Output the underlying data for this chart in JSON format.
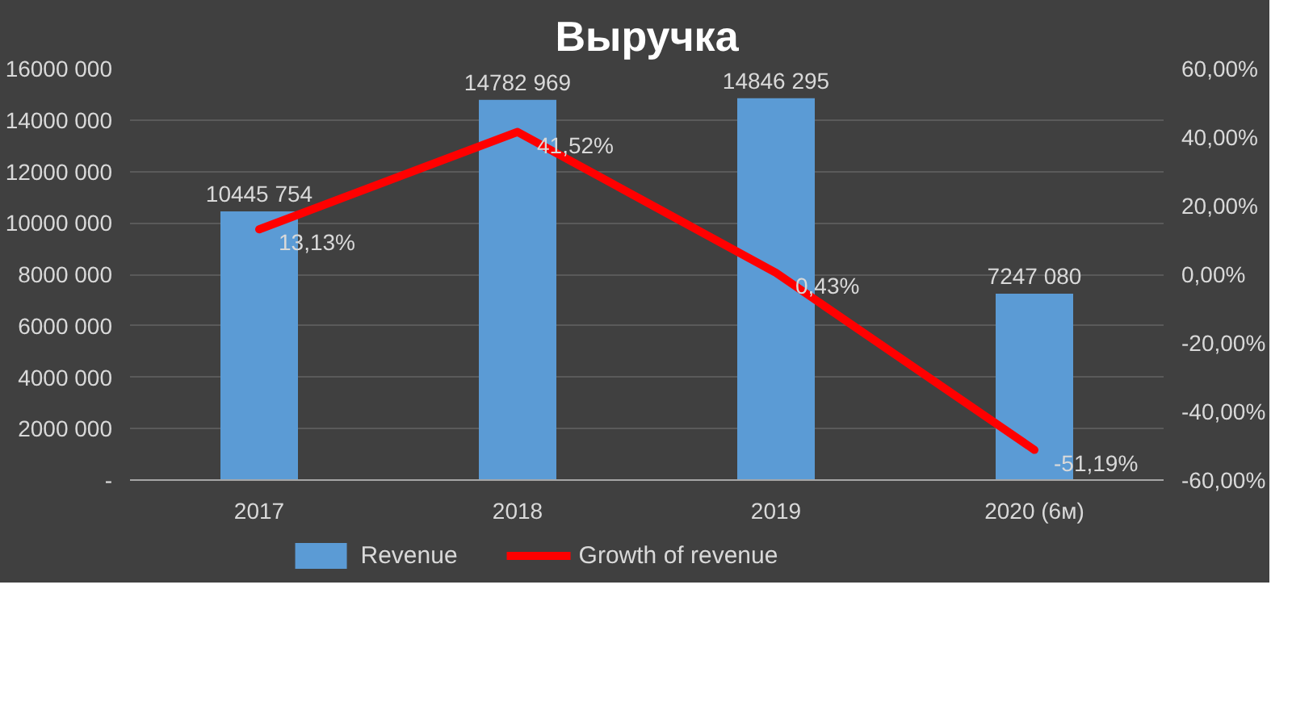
{
  "chart_data": {
    "type": "bar",
    "title": "Выручка",
    "categories": [
      "2017",
      "2018",
      "2019",
      "2020 (6м)"
    ],
    "series": [
      {
        "name": "Revenue",
        "color": "#5b9bd5",
        "values": [
          10445754,
          14782969,
          14846295,
          7247080
        ],
        "value_labels": [
          "10445 754",
          "14782 969",
          "14846 295",
          "7247 080"
        ]
      },
      {
        "name": "Growth of revenue",
        "type": "line",
        "axis": "y2",
        "color": "#ff0000",
        "values": [
          13.13,
          41.52,
          0.43,
          -51.19
        ],
        "value_labels": [
          "13,13%",
          "41,52%",
          "0,43%",
          "-51,19%"
        ]
      }
    ],
    "ylim": [
      0,
      16000000
    ],
    "yticks": [
      {
        "value": 0,
        "label": "-"
      },
      {
        "value": 2000000,
        "label": "2000 000"
      },
      {
        "value": 4000000,
        "label": "4000 000"
      },
      {
        "value": 6000000,
        "label": "6000 000"
      },
      {
        "value": 8000000,
        "label": "8000 000"
      },
      {
        "value": 10000000,
        "label": "10000 000"
      },
      {
        "value": 12000000,
        "label": "12000 000"
      },
      {
        "value": 14000000,
        "label": "14000 000"
      },
      {
        "value": 16000000,
        "label": "16000 000"
      }
    ],
    "y2lim": [
      -60,
      60
    ],
    "y2ticks": [
      {
        "value": -60,
        "label": "-60,00%"
      },
      {
        "value": -40,
        "label": "-40,00%"
      },
      {
        "value": -20,
        "label": "-20,00%"
      },
      {
        "value": 0,
        "label": "0,00%"
      },
      {
        "value": 20,
        "label": "20,00%"
      },
      {
        "value": 40,
        "label": "40,00%"
      },
      {
        "value": 60,
        "label": "60,00%"
      }
    ],
    "grid": "y",
    "legend": "bottom"
  }
}
